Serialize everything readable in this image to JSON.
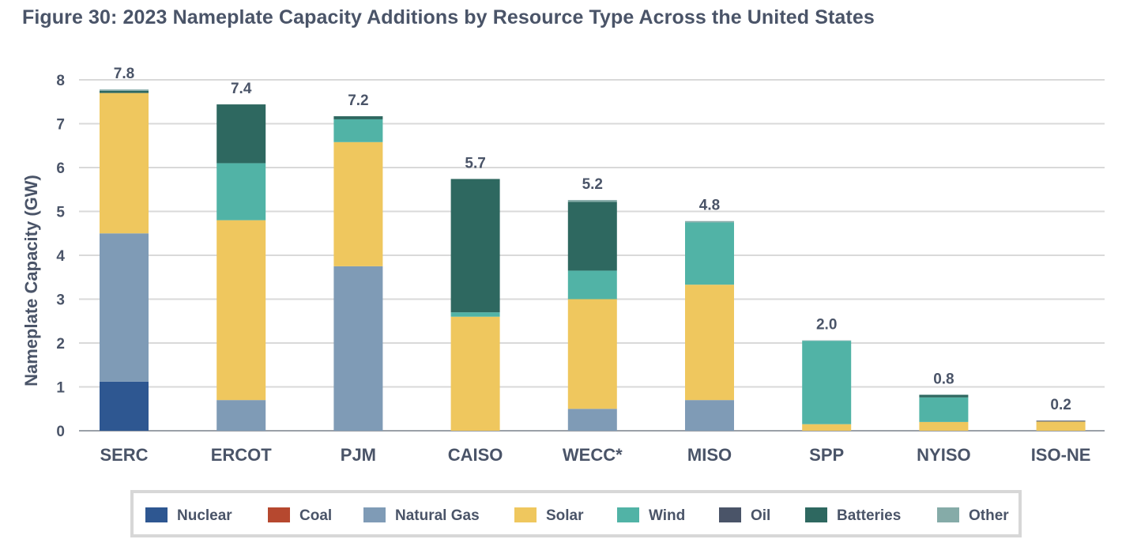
{
  "title": "Figure 30: 2023 Nameplate Capacity Additions by Resource Type Across the United States",
  "colors": {
    "Nuclear": "#2e5791",
    "Coal": "#b6482f",
    "Natural Gas": "#7f9bb6",
    "Solar": "#efc75e",
    "Wind": "#51b3a6",
    "Oil": "#4a5468",
    "Batteries": "#2e6860",
    "Other": "#85aba8"
  },
  "chart_data": {
    "type": "bar",
    "stacked": true,
    "ylabel": "Nameplate Capacity (GW)",
    "xlabel": "",
    "ylim": [
      0,
      8
    ],
    "yticks": [
      0,
      1,
      2,
      3,
      4,
      5,
      6,
      7,
      8
    ],
    "grid": true,
    "legend_position": "bottom",
    "categories": [
      "SERC",
      "ERCOT",
      "PJM",
      "CAISO",
      "WECC*",
      "MISO",
      "SPP",
      "NYISO",
      "ISO-NE"
    ],
    "totals_labels": [
      "7.8",
      "7.4",
      "7.2",
      "5.7",
      "5.2",
      "4.8",
      "2.0",
      "0.8",
      "0.2"
    ],
    "series": [
      {
        "name": "Nuclear",
        "values": [
          1.12,
          0,
          0,
          0,
          0,
          0,
          0,
          0,
          0
        ]
      },
      {
        "name": "Coal",
        "values": [
          0,
          0,
          0,
          0,
          0,
          0,
          0,
          0,
          0
        ]
      },
      {
        "name": "Natural Gas",
        "values": [
          3.38,
          0.7,
          3.75,
          0,
          0.5,
          0.7,
          0,
          0,
          0
        ]
      },
      {
        "name": "Solar",
        "values": [
          3.2,
          4.1,
          2.83,
          2.6,
          2.5,
          2.63,
          0.15,
          0.2,
          0.21
        ]
      },
      {
        "name": "Wind",
        "values": [
          0,
          1.3,
          0.52,
          0.1,
          0.65,
          1.42,
          1.9,
          0.56,
          0
        ]
      },
      {
        "name": "Oil",
        "values": [
          0,
          0,
          0,
          0,
          0,
          0,
          0,
          0,
          0.02
        ]
      },
      {
        "name": "Batteries",
        "values": [
          0.05,
          1.34,
          0.07,
          3.04,
          1.57,
          0,
          0,
          0.06,
          0
        ]
      },
      {
        "name": "Other",
        "values": [
          0.03,
          0,
          0,
          0,
          0.04,
          0.03,
          0.01,
          0,
          0
        ]
      }
    ]
  }
}
